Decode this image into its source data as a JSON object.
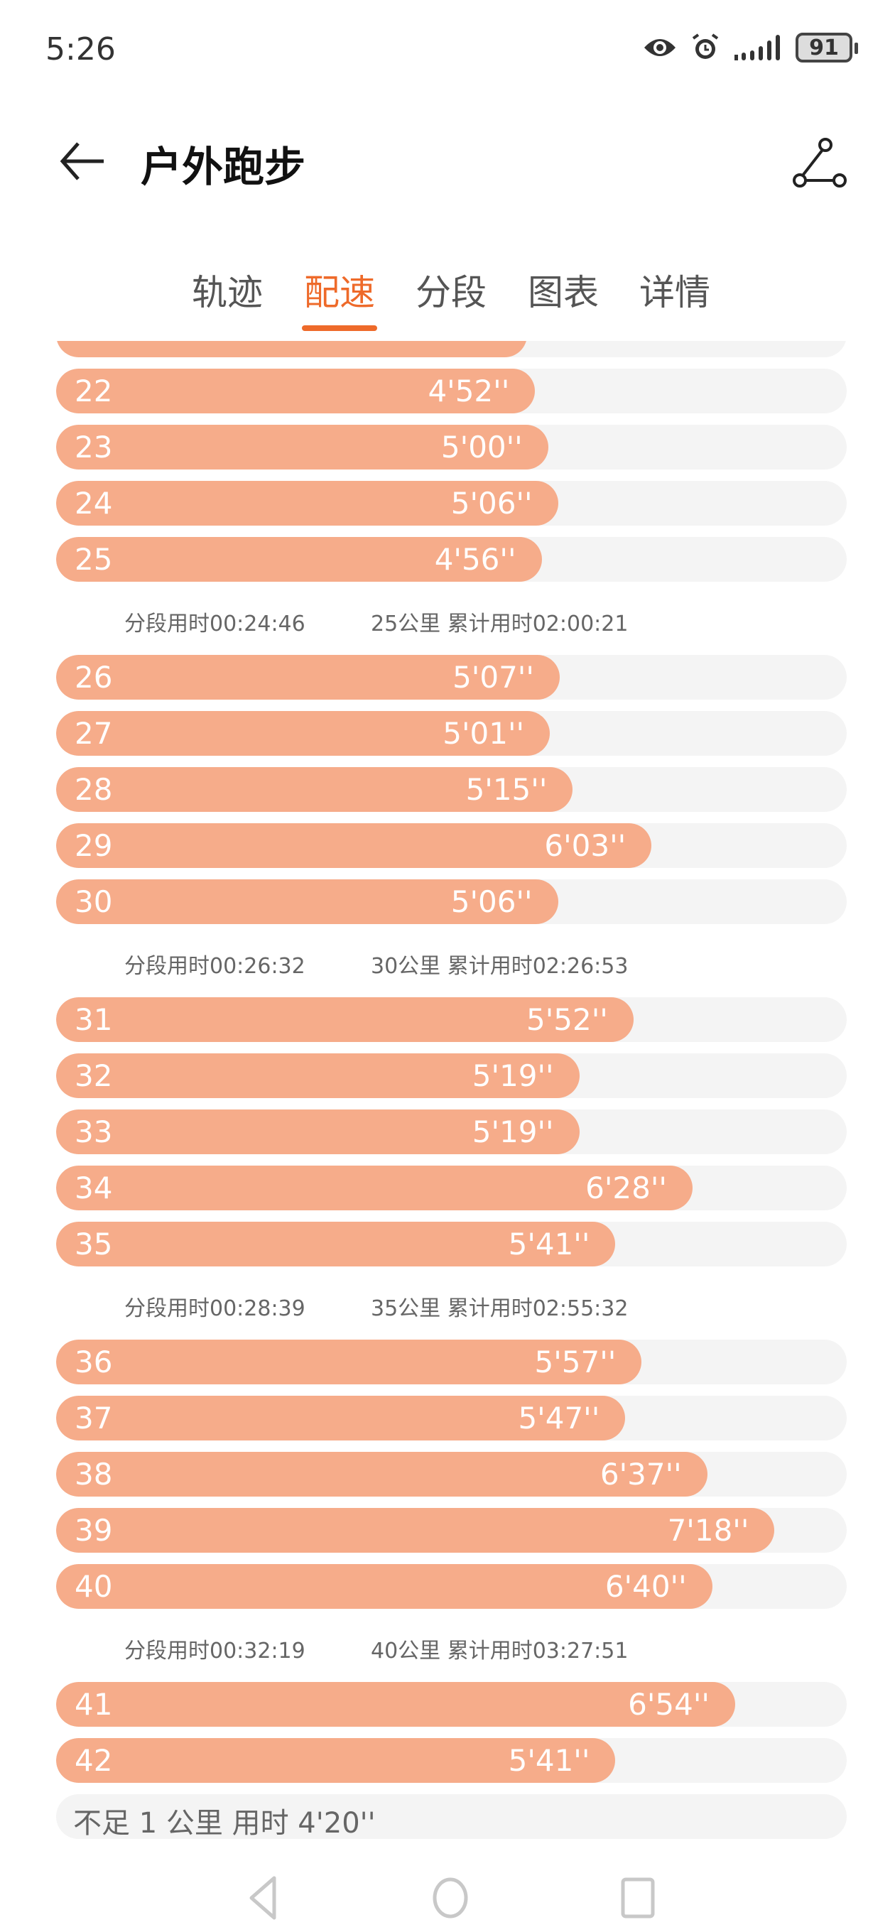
{
  "status_bar": {
    "time": "5:26",
    "battery": "91",
    "icons": [
      "eye-icon",
      "alarm-icon",
      "signal-icon",
      "battery-icon"
    ]
  },
  "header": {
    "title": "户外跑步",
    "back_icon": "arrow-left-icon",
    "share_icon": "share-icon"
  },
  "tabs": [
    {
      "label": "轨迹"
    },
    {
      "label": "配速",
      "active": true
    },
    {
      "label": "分段"
    },
    {
      "label": "图表"
    },
    {
      "label": "详情"
    }
  ],
  "colors": {
    "accent": "#EE6A2A",
    "bar_fill": "#F6AC8A",
    "track": "#F4F4F4"
  },
  "pace_scale_max_seconds": 482,
  "partial_top_row_seconds": 287,
  "groups": [
    {
      "rows": [
        {
          "km": "22",
          "pace": "4'52''",
          "seconds": 292
        },
        {
          "km": "23",
          "pace": "5'00''",
          "seconds": 300
        },
        {
          "km": "24",
          "pace": "5'06''",
          "seconds": 306
        },
        {
          "km": "25",
          "pace": "4'56''",
          "seconds": 296
        }
      ],
      "summary": {
        "split": "分段用时00:24:46",
        "total": "25公里 累计用时02:00:21"
      }
    },
    {
      "rows": [
        {
          "km": "26",
          "pace": "5'07''",
          "seconds": 307
        },
        {
          "km": "27",
          "pace": "5'01''",
          "seconds": 301
        },
        {
          "km": "28",
          "pace": "5'15''",
          "seconds": 315
        },
        {
          "km": "29",
          "pace": "6'03''",
          "seconds": 363
        },
        {
          "km": "30",
          "pace": "5'06''",
          "seconds": 306
        }
      ],
      "summary": {
        "split": "分段用时00:26:32",
        "total": "30公里 累计用时02:26:53"
      }
    },
    {
      "rows": [
        {
          "km": "31",
          "pace": "5'52''",
          "seconds": 352
        },
        {
          "km": "32",
          "pace": "5'19''",
          "seconds": 319
        },
        {
          "km": "33",
          "pace": "5'19''",
          "seconds": 319
        },
        {
          "km": "34",
          "pace": "6'28''",
          "seconds": 388
        },
        {
          "km": "35",
          "pace": "5'41''",
          "seconds": 341
        }
      ],
      "summary": {
        "split": "分段用时00:28:39",
        "total": "35公里 累计用时02:55:32"
      }
    },
    {
      "rows": [
        {
          "km": "36",
          "pace": "5'57''",
          "seconds": 357
        },
        {
          "km": "37",
          "pace": "5'47''",
          "seconds": 347
        },
        {
          "km": "38",
          "pace": "6'37''",
          "seconds": 397
        },
        {
          "km": "39",
          "pace": "7'18''",
          "seconds": 438
        },
        {
          "km": "40",
          "pace": "6'40''",
          "seconds": 400
        }
      ],
      "summary": {
        "split": "分段用时00:32:19",
        "total": "40公里 累计用时03:27:51"
      }
    },
    {
      "rows": [
        {
          "km": "41",
          "pace": "6'54''",
          "seconds": 414
        },
        {
          "km": "42",
          "pace": "5'41''",
          "seconds": 341
        }
      ]
    }
  ],
  "remainder": "不足 1 公里 用时 4'20''",
  "nav_bar": {
    "icons": [
      "back-triangle-icon",
      "home-circle-icon",
      "recents-square-icon"
    ]
  }
}
